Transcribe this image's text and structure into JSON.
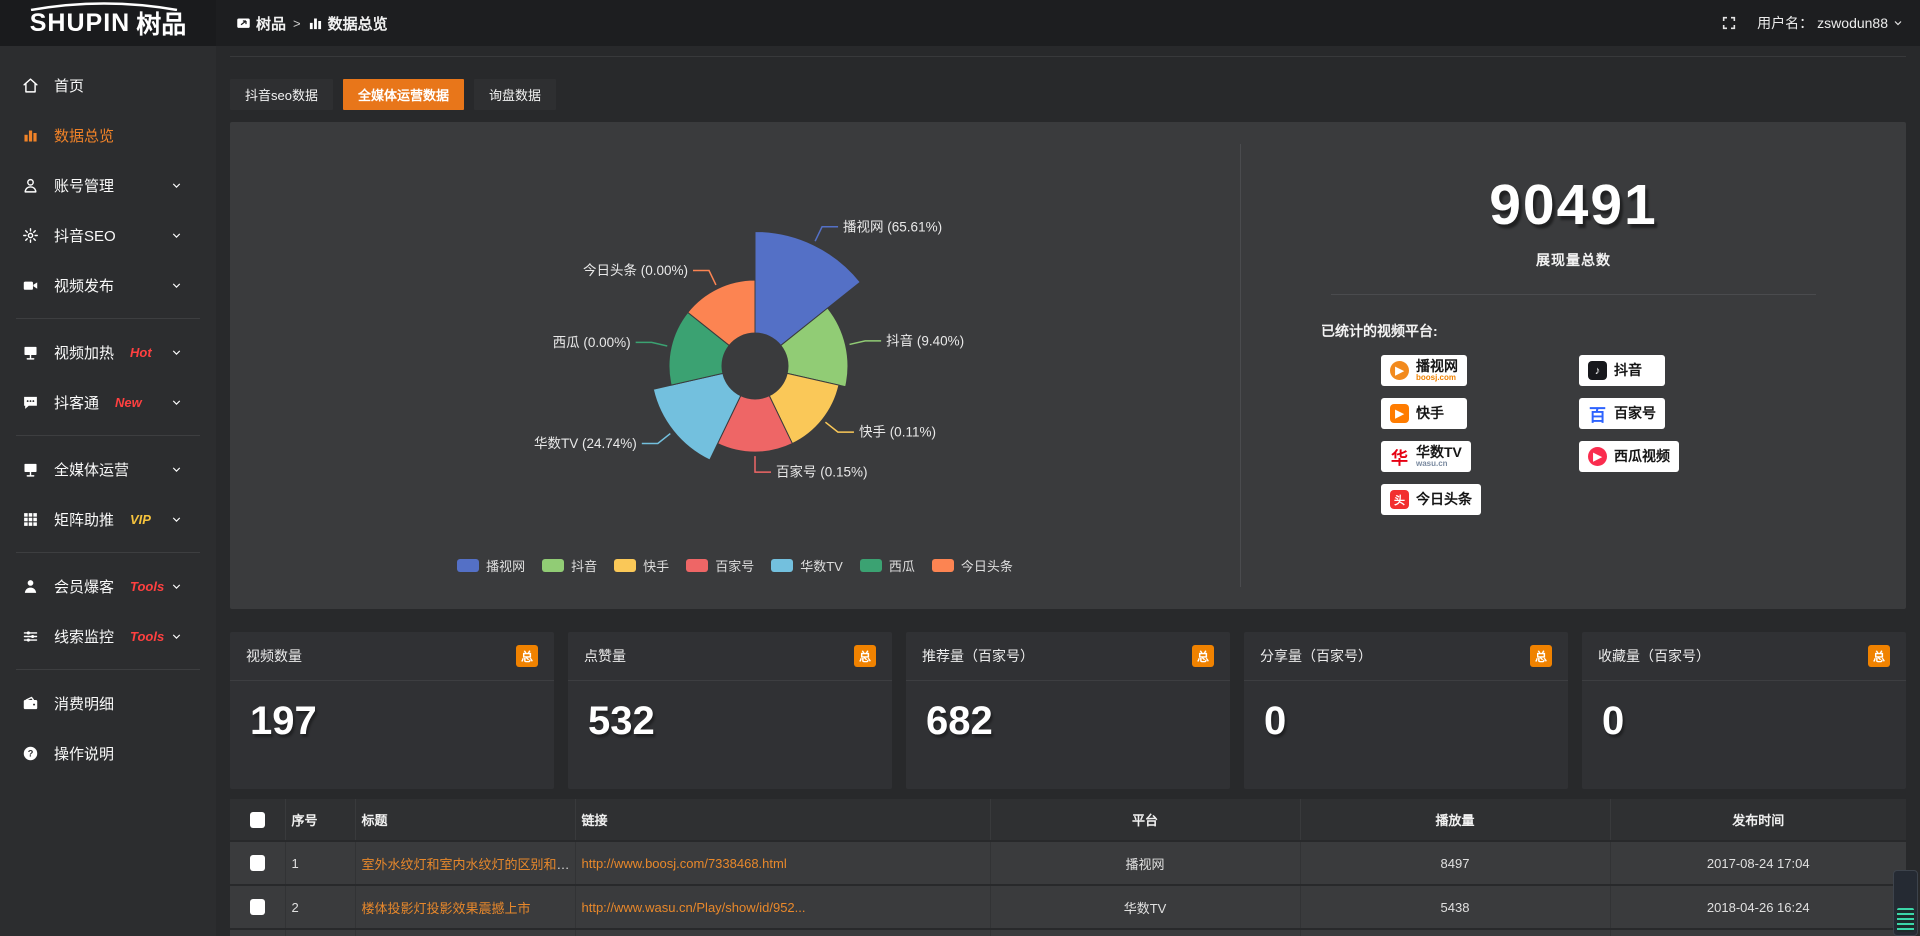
{
  "app": {
    "logo_en": "SHUPIN",
    "logo_cn": "树品"
  },
  "header": {
    "breadcrumb": [
      {
        "label": "树品",
        "icon": "cast-icon"
      },
      {
        "label": "数据总览",
        "icon": "bar-chart-icon"
      }
    ],
    "separator": ">",
    "fullscreen_icon": "fullscreen",
    "username_label": "用户名：",
    "username": "zswodun88"
  },
  "sidebar": {
    "items": [
      {
        "label": "首页",
        "icon": "home"
      },
      {
        "label": "数据总览",
        "icon": "chart",
        "active": true
      },
      {
        "label": "账号管理",
        "icon": "user",
        "chevron": true
      },
      {
        "label": "抖音SEO",
        "icon": "gear",
        "chevron": true
      },
      {
        "label": "视频发布",
        "icon": "video",
        "chevron": true
      },
      {
        "divider": true
      },
      {
        "label": "视频加热",
        "icon": "monitor",
        "badge": "Hot",
        "badge_color": "#ff4040",
        "chevron": true
      },
      {
        "label": "抖客通",
        "icon": "chat",
        "badge": "New",
        "badge_color": "#ff4040",
        "chevron": true
      },
      {
        "divider": true
      },
      {
        "label": "全媒体运营",
        "icon": "monitor",
        "chevron": true
      },
      {
        "label": "矩阵助推",
        "icon": "grid",
        "badge": "VIP",
        "badge_color": "#f6c33d",
        "chevron": true
      },
      {
        "divider": true
      },
      {
        "label": "会员爆客",
        "icon": "member",
        "badge": "Tools",
        "badge_color": "#ff4040",
        "chevron": true
      },
      {
        "label": "线索监控",
        "icon": "sliders",
        "badge": "Tools",
        "badge_color": "#ff4040",
        "chevron": true
      },
      {
        "divider": true
      },
      {
        "label": "消费明细",
        "icon": "wallet"
      },
      {
        "label": "操作说明",
        "icon": "help"
      }
    ]
  },
  "tabs": [
    {
      "label": "抖音seo数据",
      "active": false
    },
    {
      "label": "全媒体运营数据",
      "active": true
    },
    {
      "label": "询盘数据",
      "active": false
    }
  ],
  "chart_data": {
    "type": "pie",
    "variant": "nightingale-rose",
    "unit": "%",
    "label_format": "{name} ({value}%)",
    "legend_position": "bottom",
    "series": [
      {
        "name": "播视网",
        "value": 65.61,
        "color": "#5470c6"
      },
      {
        "name": "抖音",
        "value": 9.4,
        "color": "#91cc75"
      },
      {
        "name": "快手",
        "value": 0.11,
        "color": "#fac858"
      },
      {
        "name": "百家号",
        "value": 0.15,
        "color": "#ee6666"
      },
      {
        "name": "华数TV",
        "value": 24.74,
        "color": "#73c0de"
      },
      {
        "name": "西瓜",
        "value": 0.0,
        "color": "#3ba272"
      },
      {
        "name": "今日头条",
        "value": 0.0,
        "color": "#fc8452"
      }
    ],
    "legend": [
      "播视网",
      "抖音",
      "快手",
      "百家号",
      "华数TV",
      "西瓜",
      "今日头条"
    ]
  },
  "summary": {
    "total_value": "90491",
    "total_label": "展现量总数",
    "platforms_label": "已统计的视频平台:",
    "platforms": [
      {
        "name": "播视网",
        "sub": "boosj.com",
        "sub_color": "#f08200",
        "logo_color": "#f28a1d",
        "logo_shape": "circle",
        "logo_glyph": "▶"
      },
      {
        "name": "抖音",
        "sub": "",
        "sub_color": "",
        "logo_color": "#17181c",
        "logo_shape": "square",
        "logo_glyph": "♪"
      },
      {
        "name": "快手",
        "sub": "",
        "sub_color": "",
        "logo_color": "#ff7c00",
        "logo_shape": "square",
        "logo_glyph": "▶"
      },
      {
        "name": "百家号",
        "sub": "",
        "sub_color": "",
        "logo_color": "#2d63ff",
        "logo_shape": "plain",
        "logo_glyph": "百"
      },
      {
        "name": "华数TV",
        "sub": "wasu.cn",
        "sub_color": "#7a8aa0",
        "logo_color": "#e60012",
        "logo_shape": "plain",
        "logo_glyph": "华"
      },
      {
        "name": "西瓜视频",
        "sub": "",
        "sub_color": "",
        "logo_color": "#fa2c4e",
        "logo_shape": "circle",
        "logo_glyph": "▶"
      },
      {
        "name": "今日头条",
        "sub": "",
        "sub_color": "",
        "logo_color": "#f23030",
        "logo_shape": "square",
        "logo_glyph": "头"
      }
    ]
  },
  "stat_cards": [
    {
      "label": "视频数量",
      "badge": "总",
      "value": "197"
    },
    {
      "label": "点赞量",
      "badge": "总",
      "value": "532"
    },
    {
      "label": "推荐量（百家号）",
      "badge": "总",
      "value": "682"
    },
    {
      "label": "分享量（百家号）",
      "badge": "总",
      "value": "0"
    },
    {
      "label": "收藏量（百家号）",
      "badge": "总",
      "value": "0"
    }
  ],
  "table": {
    "headers": [
      "序号",
      "标题",
      "链接",
      "平台",
      "播放量",
      "发布时间"
    ],
    "rows": [
      {
        "index": "1",
        "title": "室外水纹灯和室内水纹灯的区别和简介",
        "link": "http://www.boosj.com/7338468.html",
        "platform": "播视网",
        "plays": "8497",
        "time": "2017-08-24 17:04"
      },
      {
        "index": "2",
        "title": "楼体投影灯投影效果震撼上市",
        "link": "http://www.wasu.cn/Play/show/id/952...",
        "platform": "华数TV",
        "plays": "5438",
        "time": "2018-04-26 16:24"
      },
      {
        "index": "",
        "title": "",
        "link": "",
        "platform": "",
        "plays": "",
        "time": ""
      }
    ]
  }
}
